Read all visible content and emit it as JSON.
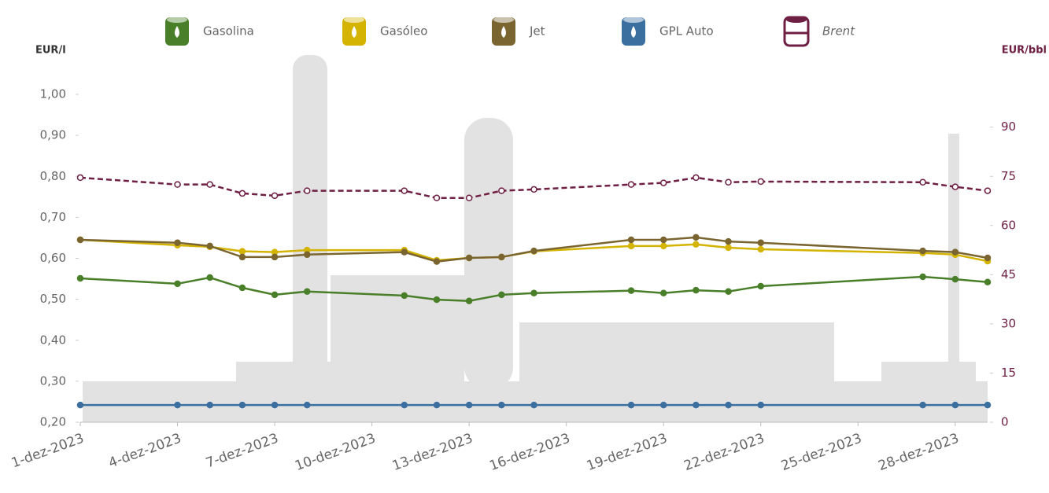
{
  "chart_data": {
    "type": "line",
    "y_label": "EUR/l",
    "y2_label": "EUR/bbl",
    "x": [
      "2023-12-01",
      "2023-12-04",
      "2023-12-05",
      "2023-12-06",
      "2023-12-07",
      "2023-12-08",
      "2023-12-11",
      "2023-12-12",
      "2023-12-13",
      "2023-12-14",
      "2023-12-15",
      "2023-12-18",
      "2023-12-19",
      "2023-12-20",
      "2023-12-21",
      "2023-12-22",
      "2023-12-27",
      "2023-12-28",
      "2023-12-29"
    ],
    "xlim": [
      "2023-12-01",
      "2023-12-29"
    ],
    "xticks": [
      {
        "value": "2023-12-01",
        "label": "1-dez-2023"
      },
      {
        "value": "2023-12-04",
        "label": "4-dez-2023"
      },
      {
        "value": "2023-12-07",
        "label": "7-dez-2023"
      },
      {
        "value": "2023-12-10",
        "label": "10-dez-2023"
      },
      {
        "value": "2023-12-13",
        "label": "13-dez-2023"
      },
      {
        "value": "2023-12-16",
        "label": "16-dez-2023"
      },
      {
        "value": "2023-12-19",
        "label": "19-dez-2023"
      },
      {
        "value": "2023-12-22",
        "label": "22-dez-2023"
      },
      {
        "value": "2023-12-25",
        "label": "25-dez-2023"
      },
      {
        "value": "2023-12-28",
        "label": "28-dez-2023"
      }
    ],
    "ylim": [
      0.2,
      1.0
    ],
    "yticks": [
      {
        "value": 0.2,
        "label": "0,20"
      },
      {
        "value": 0.3,
        "label": "0,30"
      },
      {
        "value": 0.4,
        "label": "0,40"
      },
      {
        "value": 0.5,
        "label": "0,50"
      },
      {
        "value": 0.6,
        "label": "0,60"
      },
      {
        "value": 0.7,
        "label": "0,70"
      },
      {
        "value": 0.8,
        "label": "0,80"
      },
      {
        "value": 0.9,
        "label": "0,90"
      },
      {
        "value": 1.0,
        "label": "1,00"
      }
    ],
    "y2lim": [
      0,
      100
    ],
    "y2ticks": [
      0,
      15,
      30,
      45,
      60,
      75,
      90
    ],
    "series": [
      {
        "name": "Gasolina",
        "color": "#4a7f2a",
        "values": [
          0.551,
          0.538,
          0.553,
          0.528,
          0.511,
          0.519,
          0.509,
          0.499,
          0.496,
          0.511,
          0.515,
          0.521,
          0.515,
          0.522,
          0.519,
          0.532,
          0.555,
          0.549,
          0.542
        ]
      },
      {
        "name": "Gasóleo",
        "color": "#d4b400",
        "values": [
          0.645,
          0.632,
          0.628,
          0.617,
          0.615,
          0.62,
          0.62,
          0.595,
          0.601,
          0.603,
          0.617,
          0.63,
          0.63,
          0.634,
          0.626,
          0.622,
          0.613,
          0.609,
          0.593
        ]
      },
      {
        "name": "Jet",
        "color": "#7a6530",
        "values": [
          0.645,
          0.638,
          0.63,
          0.603,
          0.603,
          0.609,
          0.615,
          0.592,
          0.601,
          0.603,
          0.618,
          0.645,
          0.645,
          0.651,
          0.641,
          0.638,
          0.618,
          0.615,
          0.601
        ]
      },
      {
        "name": "GPL Auto",
        "color": "#3b6fa0",
        "values": [
          0.242,
          0.242,
          0.242,
          0.242,
          0.242,
          0.242,
          0.242,
          0.242,
          0.242,
          0.242,
          0.242,
          0.242,
          0.242,
          0.242,
          0.242,
          0.242,
          0.242,
          0.242,
          0.242
        ]
      },
      {
        "name": "Brent",
        "color": "#6e1f43",
        "axis": "y2",
        "dashed": true,
        "values": [
          74.6,
          72.5,
          72.5,
          69.8,
          69.1,
          70.6,
          70.6,
          68.4,
          68.4,
          70.6,
          71.0,
          72.5,
          73.0,
          74.6,
          73.2,
          73.4,
          73.2,
          71.8,
          70.6
        ]
      }
    ]
  }
}
